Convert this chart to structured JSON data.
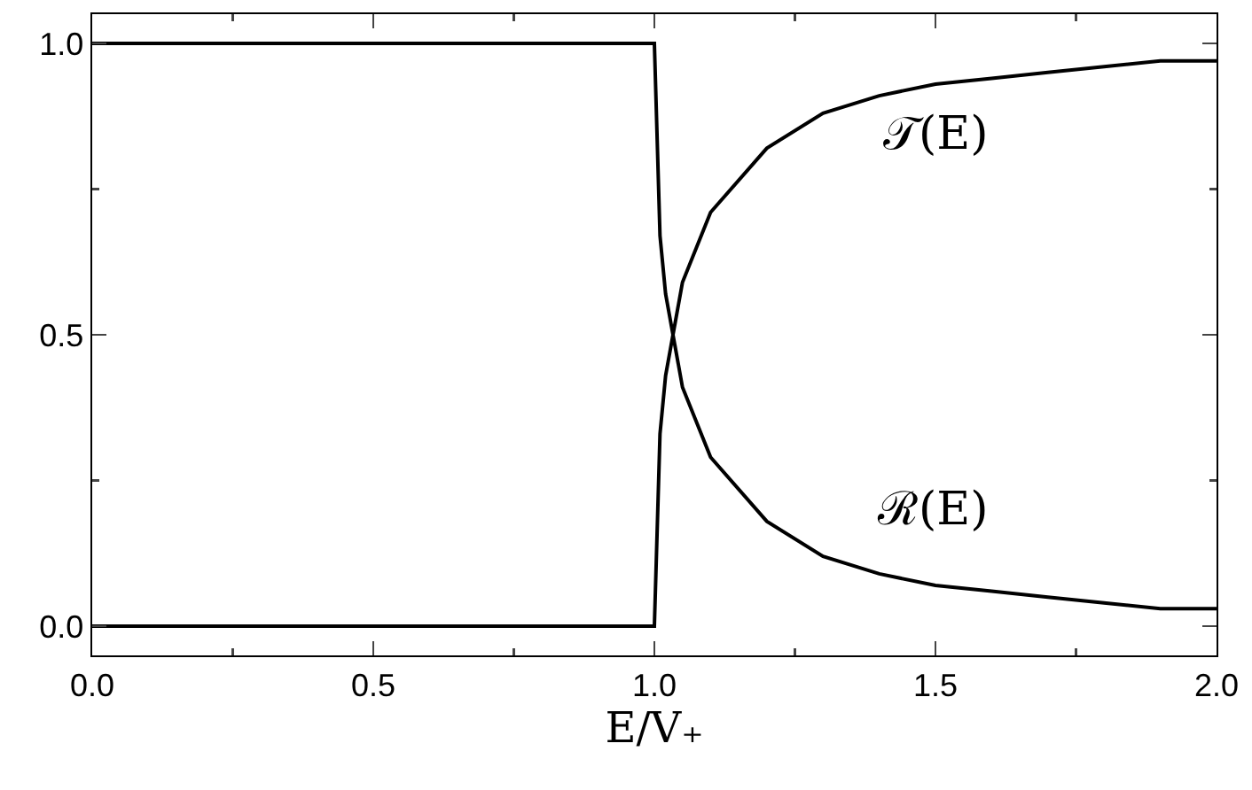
{
  "chart_data": {
    "type": "line",
    "xlabel": "E/V₊",
    "xlim": [
      0,
      2
    ],
    "ylim": [
      -0.05,
      1.05
    ],
    "xticks": [
      {
        "value": 0,
        "label": "0.0"
      },
      {
        "value": 0.5,
        "label": "0.5"
      },
      {
        "value": 1,
        "label": "1.0"
      },
      {
        "value": 1.5,
        "label": "1.5"
      },
      {
        "value": 2,
        "label": "2.0"
      }
    ],
    "yticks": [
      {
        "value": 0,
        "label": "0.0"
      },
      {
        "value": 0.5,
        "label": "0.5"
      },
      {
        "value": 1,
        "label": "1.0"
      }
    ],
    "x": [
      0,
      1,
      1.01,
      1.02,
      1.05,
      1.1,
      1.2,
      1.3,
      1.4,
      1.5,
      1.6,
      1.7,
      1.8,
      1.9,
      2.0
    ],
    "series": [
      {
        "name": "𝒯(E)",
        "color": "#000000",
        "values": [
          0,
          0,
          0.33,
          0.43,
          0.59,
          0.71,
          0.82,
          0.88,
          0.91,
          0.93,
          0.94,
          0.95,
          0.96,
          0.97,
          0.97
        ]
      },
      {
        "name": "ℛ(E)",
        "color": "#000000",
        "values": [
          1,
          1,
          0.67,
          0.57,
          0.41,
          0.29,
          0.18,
          0.12,
          0.09,
          0.07,
          0.06,
          0.05,
          0.04,
          0.03,
          0.03
        ]
      }
    ],
    "grid": false,
    "legend": false,
    "marker": "none",
    "line_style": "solid"
  }
}
